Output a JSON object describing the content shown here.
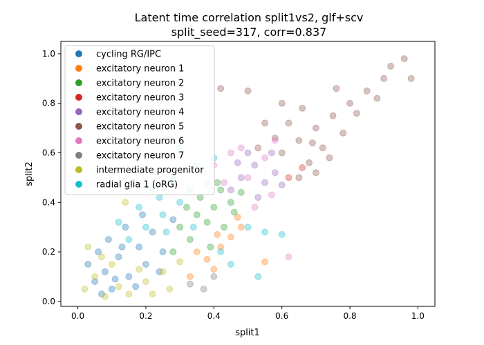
{
  "chart_data": {
    "type": "scatter",
    "title_line1": "Latent time correlation split1vs2, glf+scv",
    "title_line2": "split_seed=317, corr=0.837",
    "xlabel": "split1",
    "ylabel": "split2",
    "xlim": [
      -0.05,
      1.05
    ],
    "ylim": [
      -0.02,
      1.05
    ],
    "xticks": [
      0.0,
      0.2,
      0.4,
      0.6,
      0.8,
      1.0
    ],
    "yticks": [
      0.0,
      0.2,
      0.4,
      0.6,
      0.8,
      1.0
    ],
    "xtick_labels": [
      "0.0",
      "0.2",
      "0.4",
      "0.6",
      "0.8",
      "1.0"
    ],
    "ytick_labels": [
      "0.0",
      "0.2",
      "0.4",
      "0.6",
      "0.8",
      "1.0"
    ],
    "grid": false,
    "legend_position": "top-left",
    "point_alpha": 0.35,
    "series": [
      {
        "name": "cycling RG/IPC",
        "color": "#1f77b4",
        "points": [
          [
            0.05,
            0.08
          ],
          [
            0.08,
            0.12
          ],
          [
            0.1,
            0.05
          ],
          [
            0.12,
            0.18
          ],
          [
            0.15,
            0.1
          ],
          [
            0.18,
            0.22
          ],
          [
            0.2,
            0.15
          ],
          [
            0.22,
            0.28
          ],
          [
            0.06,
            0.2
          ],
          [
            0.14,
            0.3
          ],
          [
            0.25,
            0.2
          ],
          [
            0.09,
            0.25
          ],
          [
            0.17,
            0.06
          ],
          [
            0.03,
            0.15
          ],
          [
            0.28,
            0.33
          ],
          [
            0.11,
            0.09
          ],
          [
            0.19,
            0.35
          ],
          [
            0.24,
            0.12
          ],
          [
            0.13,
            0.22
          ],
          [
            0.07,
            0.03
          ]
        ]
      },
      {
        "name": "excitatory neuron 1",
        "color": "#ff7f0e",
        "points": [
          [
            0.35,
            0.2
          ],
          [
            0.38,
            0.17
          ],
          [
            0.42,
            0.22
          ],
          [
            0.45,
            0.26
          ],
          [
            0.48,
            0.3
          ],
          [
            0.4,
            0.13
          ],
          [
            0.55,
            0.16
          ],
          [
            0.33,
            0.1
          ],
          [
            0.47,
            0.34
          ],
          [
            0.41,
            0.27
          ]
        ]
      },
      {
        "name": "excitatory neuron 2",
        "color": "#2ca02c",
        "points": [
          [
            0.3,
            0.3
          ],
          [
            0.35,
            0.35
          ],
          [
            0.4,
            0.38
          ],
          [
            0.42,
            0.45
          ],
          [
            0.45,
            0.4
          ],
          [
            0.38,
            0.32
          ],
          [
            0.33,
            0.25
          ],
          [
            0.48,
            0.44
          ],
          [
            0.36,
            0.42
          ],
          [
            0.28,
            0.2
          ],
          [
            0.43,
            0.3
          ],
          [
            0.39,
            0.22
          ],
          [
            0.32,
            0.38
          ],
          [
            0.46,
            0.36
          ],
          [
            0.41,
            0.48
          ]
        ]
      },
      {
        "name": "excitatory neuron 3",
        "color": "#d62728",
        "points": [
          [
            0.62,
            0.5
          ],
          [
            0.66,
            0.54
          ]
        ]
      },
      {
        "name": "excitatory neuron 4",
        "color": "#9467bd",
        "points": [
          [
            0.48,
            0.5
          ],
          [
            0.52,
            0.55
          ],
          [
            0.55,
            0.48
          ],
          [
            0.5,
            0.6
          ],
          [
            0.58,
            0.52
          ],
          [
            0.45,
            0.45
          ],
          [
            0.53,
            0.42
          ],
          [
            0.57,
            0.6
          ],
          [
            0.47,
            0.56
          ],
          [
            0.6,
            0.47
          ]
        ]
      },
      {
        "name": "excitatory neuron 5",
        "color": "#8c564b",
        "points": [
          [
            0.6,
            0.6
          ],
          [
            0.65,
            0.65
          ],
          [
            0.7,
            0.7
          ],
          [
            0.72,
            0.62
          ],
          [
            0.68,
            0.56
          ],
          [
            0.75,
            0.75
          ],
          [
            0.8,
            0.8
          ],
          [
            0.78,
            0.68
          ],
          [
            0.85,
            0.85
          ],
          [
            0.9,
            0.9
          ],
          [
            0.62,
            0.72
          ],
          [
            0.66,
            0.78
          ],
          [
            0.7,
            0.52
          ],
          [
            0.74,
            0.58
          ],
          [
            0.58,
            0.66
          ],
          [
            0.82,
            0.76
          ],
          [
            0.88,
            0.82
          ],
          [
            0.92,
            0.95
          ],
          [
            0.96,
            0.98
          ],
          [
            0.55,
            0.72
          ],
          [
            0.5,
            0.85
          ],
          [
            0.65,
            0.5
          ],
          [
            0.76,
            0.86
          ],
          [
            0.69,
            0.64
          ],
          [
            0.6,
            0.8
          ],
          [
            0.42,
            0.86
          ],
          [
            0.53,
            0.62
          ],
          [
            0.98,
            0.9
          ]
        ]
      },
      {
        "name": "excitatory neuron 6",
        "color": "#e377c2",
        "points": [
          [
            0.4,
            0.55
          ],
          [
            0.45,
            0.6
          ],
          [
            0.5,
            0.5
          ],
          [
            0.55,
            0.58
          ],
          [
            0.58,
            0.65
          ],
          [
            0.43,
            0.48
          ],
          [
            0.48,
            0.62
          ],
          [
            0.37,
            0.52
          ],
          [
            0.52,
            0.38
          ],
          [
            0.57,
            0.43
          ],
          [
            0.62,
            0.18
          ]
        ]
      },
      {
        "name": "excitatory neuron 7",
        "color": "#7f7f7f",
        "points": [
          [
            0.33,
            0.07
          ],
          [
            0.37,
            0.05
          ],
          [
            0.4,
            0.1
          ]
        ]
      },
      {
        "name": "intermediate progenitor",
        "color": "#bcbd22",
        "points": [
          [
            0.02,
            0.05
          ],
          [
            0.05,
            0.1
          ],
          [
            0.08,
            0.02
          ],
          [
            0.12,
            0.06
          ],
          [
            0.15,
            0.03
          ],
          [
            0.2,
            0.08
          ],
          [
            0.25,
            0.12
          ],
          [
            0.1,
            0.15
          ],
          [
            0.03,
            0.22
          ],
          [
            0.18,
            0.13
          ],
          [
            0.3,
            0.16
          ],
          [
            0.22,
            0.03
          ],
          [
            0.07,
            0.18
          ],
          [
            0.14,
            0.4
          ],
          [
            0.27,
            0.05
          ]
        ]
      },
      {
        "name": "radial glia 1 (oRG)",
        "color": "#17becf",
        "points": [
          [
            0.15,
            0.25
          ],
          [
            0.2,
            0.3
          ],
          [
            0.25,
            0.35
          ],
          [
            0.3,
            0.4
          ],
          [
            0.22,
            0.45
          ],
          [
            0.28,
            0.5
          ],
          [
            0.18,
            0.38
          ],
          [
            0.33,
            0.45
          ],
          [
            0.26,
            0.28
          ],
          [
            0.35,
            0.55
          ],
          [
            0.3,
            0.62
          ],
          [
            0.12,
            0.32
          ],
          [
            0.38,
            0.48
          ],
          [
            0.24,
            0.42
          ],
          [
            0.4,
            0.58
          ],
          [
            0.42,
            0.2
          ],
          [
            0.5,
            0.3
          ],
          [
            0.55,
            0.28
          ],
          [
            0.53,
            0.1
          ],
          [
            0.45,
            0.15
          ],
          [
            0.34,
            0.3
          ],
          [
            0.6,
            0.27
          ]
        ]
      }
    ]
  }
}
